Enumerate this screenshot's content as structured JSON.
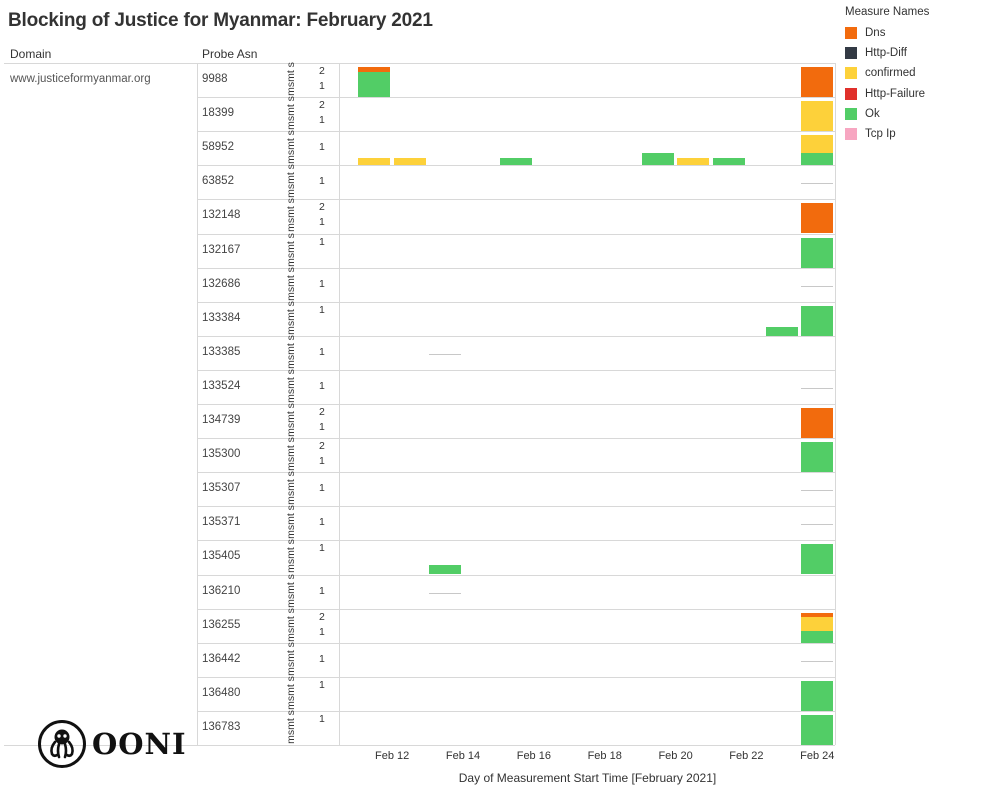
{
  "title": "Blocking of Justice for Myanmar: February 2021",
  "columns": {
    "domain": "Domain",
    "probe_asn": "Probe Asn"
  },
  "domain": "www.justiceformyanmar.org",
  "row_axis_label": "msmt s",
  "legend": {
    "title": "Measure Names",
    "items": [
      {
        "name": "Dns",
        "color": "#f26b0d"
      },
      {
        "name": "Http-Diff",
        "color": "#333a44"
      },
      {
        "name": "confirmed",
        "color": "#fdd13a"
      },
      {
        "name": "Http-Failure",
        "color": "#e0302b"
      },
      {
        "name": "Ok",
        "color": "#52cd66"
      },
      {
        "name": "Tcp Ip",
        "color": "#f7a6c1"
      }
    ]
  },
  "x_axis": {
    "title": "Day of Measurement Start Time [February 2021]",
    "ticks": [
      "Feb 12",
      "Feb 14",
      "Feb 16",
      "Feb 18",
      "Feb 20",
      "Feb 22",
      "Feb 24"
    ]
  },
  "logo_text": "OONI",
  "chart_data": {
    "type": "bar",
    "stacked": true,
    "x_domain_days": [
      11,
      25
    ],
    "rows": [
      {
        "asn": "9988",
        "ymax": 2,
        "yticks": [
          2,
          1
        ],
        "bars": [
          {
            "day": 12,
            "segments": [
              {
                "measure": "Ok",
                "value": 1.7
              },
              {
                "measure": "Dns",
                "value": 0.3
              }
            ]
          },
          {
            "day": 24.5,
            "segments": [
              {
                "measure": "Dns",
                "value": 2
              }
            ]
          }
        ]
      },
      {
        "asn": "18399",
        "ymax": 2,
        "yticks": [
          2,
          1
        ],
        "bars": [
          {
            "day": 24.5,
            "segments": [
              {
                "measure": "confirmed",
                "value": 2
              }
            ]
          }
        ]
      },
      {
        "asn": "58952",
        "ymax": 2,
        "yticks": [
          1
        ],
        "bars": [
          {
            "day": 12,
            "segments": [
              {
                "measure": "confirmed",
                "value": 0.5
              }
            ]
          },
          {
            "day": 13,
            "segments": [
              {
                "measure": "confirmed",
                "value": 0.5
              }
            ]
          },
          {
            "day": 16,
            "segments": [
              {
                "measure": "Ok",
                "value": 0.5
              }
            ]
          },
          {
            "day": 20,
            "segments": [
              {
                "measure": "Ok",
                "value": 0.8
              }
            ]
          },
          {
            "day": 21,
            "segments": [
              {
                "measure": "confirmed",
                "value": 0.5
              }
            ]
          },
          {
            "day": 22,
            "segments": [
              {
                "measure": "Ok",
                "value": 0.5
              }
            ]
          },
          {
            "day": 24.5,
            "segments": [
              {
                "measure": "Ok",
                "value": 0.8
              },
              {
                "measure": "confirmed",
                "value": 1.2
              }
            ]
          }
        ]
      },
      {
        "asn": "63852",
        "ymax": 2,
        "yticks": [
          1
        ],
        "bars": [],
        "nulls": [
          24.5
        ]
      },
      {
        "asn": "132148",
        "ymax": 2,
        "yticks": [
          2,
          1
        ],
        "bars": [
          {
            "day": 24.5,
            "segments": [
              {
                "measure": "Dns",
                "value": 2
              }
            ]
          }
        ]
      },
      {
        "asn": "132167",
        "ymax": 1,
        "yticks": [
          1
        ],
        "bars": [
          {
            "day": 24.5,
            "segments": [
              {
                "measure": "Ok",
                "value": 1
              }
            ]
          }
        ]
      },
      {
        "asn": "132686",
        "ymax": 2,
        "yticks": [
          1
        ],
        "bars": [],
        "nulls": [
          24.5
        ]
      },
      {
        "asn": "133384",
        "ymax": 1,
        "yticks": [
          1
        ],
        "bars": [
          {
            "day": 23.5,
            "segments": [
              {
                "measure": "Ok",
                "value": 0.3
              }
            ]
          },
          {
            "day": 24.5,
            "segments": [
              {
                "measure": "Ok",
                "value": 1
              }
            ]
          }
        ]
      },
      {
        "asn": "133385",
        "ymax": 2,
        "yticks": [
          1
        ],
        "bars": [],
        "nulls": [
          14
        ]
      },
      {
        "asn": "133524",
        "ymax": 2,
        "yticks": [
          1
        ],
        "bars": [],
        "nulls": [
          24.5
        ]
      },
      {
        "asn": "134739",
        "ymax": 2,
        "yticks": [
          2,
          1
        ],
        "bars": [
          {
            "day": 24.5,
            "segments": [
              {
                "measure": "Dns",
                "value": 2
              }
            ]
          }
        ]
      },
      {
        "asn": "135300",
        "ymax": 2,
        "yticks": [
          2,
          1
        ],
        "bars": [
          {
            "day": 24.5,
            "segments": [
              {
                "measure": "Ok",
                "value": 2
              }
            ]
          }
        ]
      },
      {
        "asn": "135307",
        "ymax": 2,
        "yticks": [
          1
        ],
        "bars": [],
        "nulls": [
          24.5
        ]
      },
      {
        "asn": "135371",
        "ymax": 2,
        "yticks": [
          1
        ],
        "bars": [],
        "nulls": [
          24.5
        ]
      },
      {
        "asn": "135405",
        "ymax": 1,
        "yticks": [
          1
        ],
        "bars": [
          {
            "day": 14,
            "segments": [
              {
                "measure": "Ok",
                "value": 0.3
              }
            ]
          },
          {
            "day": 24.5,
            "segments": [
              {
                "measure": "Ok",
                "value": 1
              }
            ]
          }
        ]
      },
      {
        "asn": "136210",
        "ymax": 2,
        "yticks": [
          1
        ],
        "bars": [],
        "nulls": [
          14
        ]
      },
      {
        "asn": "136255",
        "ymax": 2,
        "yticks": [
          2,
          1
        ],
        "bars": [
          {
            "day": 24.5,
            "segments": [
              {
                "measure": "Ok",
                "value": 0.8
              },
              {
                "measure": "confirmed",
                "value": 0.9
              },
              {
                "measure": "Dns",
                "value": 0.3
              }
            ]
          }
        ]
      },
      {
        "asn": "136442",
        "ymax": 2,
        "yticks": [
          1
        ],
        "bars": [],
        "nulls": [
          24.5
        ]
      },
      {
        "asn": "136480",
        "ymax": 1,
        "yticks": [
          1
        ],
        "bars": [
          {
            "day": 24.5,
            "segments": [
              {
                "measure": "Ok",
                "value": 1
              }
            ]
          }
        ]
      },
      {
        "asn": "136783",
        "ymax": 1,
        "yticks": [
          1
        ],
        "bars": [
          {
            "day": 24.5,
            "segments": [
              {
                "measure": "Ok",
                "value": 1
              }
            ]
          }
        ]
      }
    ]
  }
}
